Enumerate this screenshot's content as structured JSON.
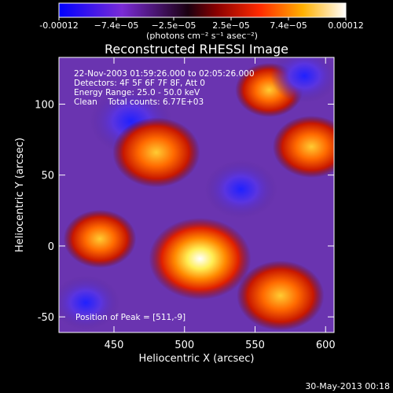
{
  "colorbar": {
    "tick_labels": [
      "-0.00012",
      "−7.4e−05",
      "−2.5e−05",
      "2.5e−05",
      "7.4e−05",
      "0.00012"
    ],
    "units_label": "(photons cm⁻² s⁻¹ asec⁻²)",
    "range": [
      -0.00012,
      0.00012
    ]
  },
  "chart_data": {
    "type": "heatmap",
    "title": "Reconstructed RHESSI Image",
    "xlabel": "Heliocentric X (arcsec)",
    "ylabel": "Heliocentric Y (arcsec)",
    "xlim": [
      411,
      606
    ],
    "ylim": [
      -61,
      133
    ],
    "xticks": [
      450,
      500,
      550,
      600
    ],
    "yticks": [
      -50,
      0,
      50,
      100
    ],
    "colormap": "blue-purple-black-red-yellow-white",
    "peak": [
      511,
      -9
    ],
    "sources": [
      {
        "x": 511,
        "y": -9,
        "value": 0.00012
      },
      {
        "x": 480,
        "y": 66,
        "value": 9e-05
      },
      {
        "x": 568,
        "y": -35,
        "value": 9e-05
      },
      {
        "x": 590,
        "y": 70,
        "value": 7e-05
      },
      {
        "x": 440,
        "y": 5,
        "value": 6e-05
      },
      {
        "x": 560,
        "y": 110,
        "value": 5e-05
      },
      {
        "x": 462,
        "y": 88,
        "value": -8e-05
      },
      {
        "x": 540,
        "y": 40,
        "value": -6e-05
      },
      {
        "x": 585,
        "y": 120,
        "value": -5e-05
      },
      {
        "x": 430,
        "y": -40,
        "value": -5e-05
      }
    ]
  },
  "info": {
    "line1": "22-Nov-2003 01:59:26.000 to 02:05:26.000",
    "line2": "Detectors: 4F 5F 6F 7F 8F, Att 0",
    "line3": "Energy Range: 25.0 - 50.0 keV",
    "line4": "Clean    Total counts: 6.77E+03",
    "peak_label": "Position of Peak = [511,-9]"
  },
  "footer": {
    "date": "30-May-2013 00:18"
  }
}
